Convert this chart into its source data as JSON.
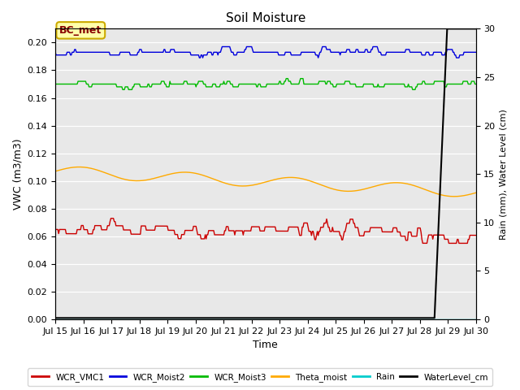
{
  "title": "Soil Moisture",
  "xlabel": "Time",
  "ylabel_left": "VWC (m3/m3)",
  "ylabel_right": "Rain (mm), Water Level (cm)",
  "ylim_left": [
    0.0,
    0.21
  ],
  "ylim_right": [
    0,
    30
  ],
  "xlim": [
    0,
    15
  ],
  "xtick_labels": [
    "Jul 15",
    "Jul 16",
    "Jul 17",
    "Jul 18",
    "Jul 19",
    "Jul 20",
    "Jul 21",
    "Jul 22",
    "Jul 23",
    "Jul 24",
    "Jul 25",
    "Jul 26",
    "Jul 27",
    "Jul 28",
    "Jul 29",
    "Jul 30"
  ],
  "bc_met_label": "BC_met",
  "background_color": "#e8e8e8",
  "figure_background": "#ffffff",
  "colors": {
    "WCR_VMC1": "#cc0000",
    "WCR_Moist2": "#0000dd",
    "WCR_Moist3": "#00bb00",
    "Theta_moist": "#ffaa00",
    "Rain": "#00cccc",
    "WaterLevel_cm": "#000000"
  }
}
